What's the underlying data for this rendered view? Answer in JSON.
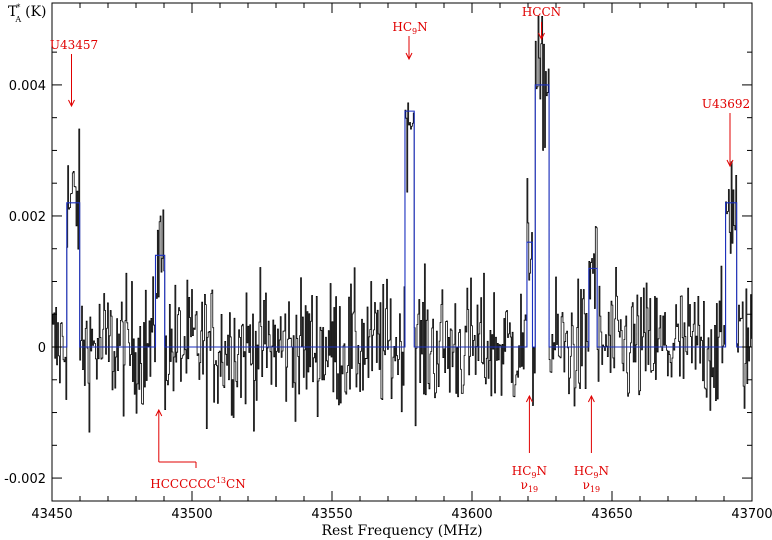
{
  "chart_data": {
    "type": "line",
    "xlabel": "Rest Frequency (MHz)",
    "ylabel": {
      "main": "T",
      "sup": "*",
      "sub": "A",
      "unit": "(K)"
    },
    "xlim": [
      43450,
      43700
    ],
    "ylim": [
      -0.00235,
      0.00525
    ],
    "x_ticks": [
      43450,
      43500,
      43550,
      43600,
      43650,
      43700
    ],
    "x_tick_labels": [
      "43450",
      "43500",
      "43550",
      "43600",
      "43650",
      "43700"
    ],
    "y_ticks": [
      -0.002,
      0,
      0.002,
      0.004
    ],
    "y_tick_labels": [
      "-0.002",
      "0",
      "0.002",
      "0.004"
    ],
    "colors": {
      "observed": "#000000",
      "model": "#1b2fc0",
      "annotation": "#e00000"
    },
    "series": [
      {
        "role": "observed spectrum",
        "noise_rms": 0.0005,
        "features": [
          {
            "center": 43457.5,
            "width": 4.8,
            "amp": 0.0022
          },
          {
            "center": 43488.5,
            "width": 3.5,
            "amp": 0.0014
          },
          {
            "center": 43577.5,
            "width": 3.2,
            "amp": 0.0036
          },
          {
            "center": 43620.5,
            "width": 2.0,
            "amp": 0.0016
          },
          {
            "center": 43625.0,
            "width": 5.0,
            "amp": 0.004
          },
          {
            "center": 43643.0,
            "width": 3.0,
            "amp": 0.0012
          },
          {
            "center": 43692.5,
            "width": 4.0,
            "amp": 0.0022
          }
        ]
      },
      {
        "role": "model fit",
        "baseline": 0,
        "features": [
          {
            "center": 43457.5,
            "width": 4.8,
            "amp": 0.0022
          },
          {
            "center": 43488.5,
            "width": 3.5,
            "amp": 0.0014
          },
          {
            "center": 43577.5,
            "width": 3.2,
            "amp": 0.0036
          },
          {
            "center": 43620.5,
            "width": 2.0,
            "amp": 0.0016
          },
          {
            "center": 43625.0,
            "width": 5.0,
            "amp": 0.004
          },
          {
            "center": 43643.0,
            "width": 3.0,
            "amp": 0.0012
          },
          {
            "center": 43692.5,
            "width": 4.0,
            "amp": 0.0022
          }
        ]
      }
    ],
    "annotations": [
      {
        "id": "u43457",
        "label": "U43457",
        "x": 43457.5
      },
      {
        "id": "hccccccc13cn",
        "label": "HCCCCCC",
        "sup": "13",
        "tail": "CN",
        "x": 43488.5
      },
      {
        "id": "hc9n",
        "label": "HC",
        "sub": "9",
        "tail": "N",
        "x": 43577.5
      },
      {
        "id": "hccn",
        "label": "HCCN",
        "x": 43625.0
      },
      {
        "id": "hc9n-v19-a",
        "label": "HC",
        "sub": "9",
        "tail": "N",
        "line2": "ν",
        "line2_sub": "19",
        "x": 43620.5
      },
      {
        "id": "hc9n-v19-b",
        "label": "HC",
        "sub": "9",
        "tail": "N",
        "line2": "ν",
        "line2_sub": "19",
        "x": 43643.0
      },
      {
        "id": "u43692",
        "label": "U43692",
        "x": 43692.5
      }
    ]
  }
}
